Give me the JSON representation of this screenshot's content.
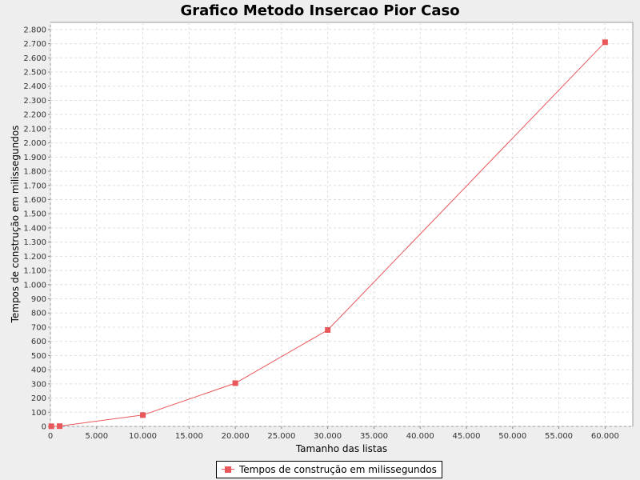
{
  "chart_data": {
    "type": "line",
    "title": "Grafico Metodo Insercao Pior Caso",
    "xlabel": "Tamanho das listas",
    "ylabel": "Tempos de construção em milissegundos",
    "xlim": [
      0,
      63000
    ],
    "ylim": [
      0,
      2850
    ],
    "x_ticks": [
      0,
      5000,
      10000,
      15000,
      20000,
      25000,
      30000,
      35000,
      40000,
      45000,
      50000,
      55000,
      60000
    ],
    "x_tick_labels": [
      "0",
      "5.000",
      "10.000",
      "15.000",
      "20.000",
      "25.000",
      "30.000",
      "35.000",
      "40.000",
      "45.000",
      "50.000",
      "55.000",
      "60.000"
    ],
    "y_ticks": [
      0,
      100,
      200,
      300,
      400,
      500,
      600,
      700,
      800,
      900,
      1000,
      1100,
      1200,
      1300,
      1400,
      1500,
      1600,
      1700,
      1800,
      1900,
      2000,
      2100,
      2200,
      2300,
      2400,
      2500,
      2600,
      2700,
      2800
    ],
    "y_tick_labels": [
      "0",
      "100",
      "200",
      "300",
      "400",
      "500",
      "600",
      "700",
      "800",
      "900",
      "1.000",
      "1.100",
      "1.200",
      "1.300",
      "1.400",
      "1.500",
      "1.600",
      "1.700",
      "1.800",
      "1.900",
      "2.000",
      "2.100",
      "2.200",
      "2.300",
      "2.400",
      "2.500",
      "2.600",
      "2.700",
      "2.800"
    ],
    "grid": true,
    "legend_position": "bottom",
    "series": [
      {
        "name": "Tempos de construção em milissegundos",
        "color": "#e8575a",
        "x": [
          100,
          1000,
          10000,
          20000,
          30000,
          60000
        ],
        "y": [
          1,
          2,
          80,
          305,
          680,
          2710
        ]
      }
    ]
  }
}
